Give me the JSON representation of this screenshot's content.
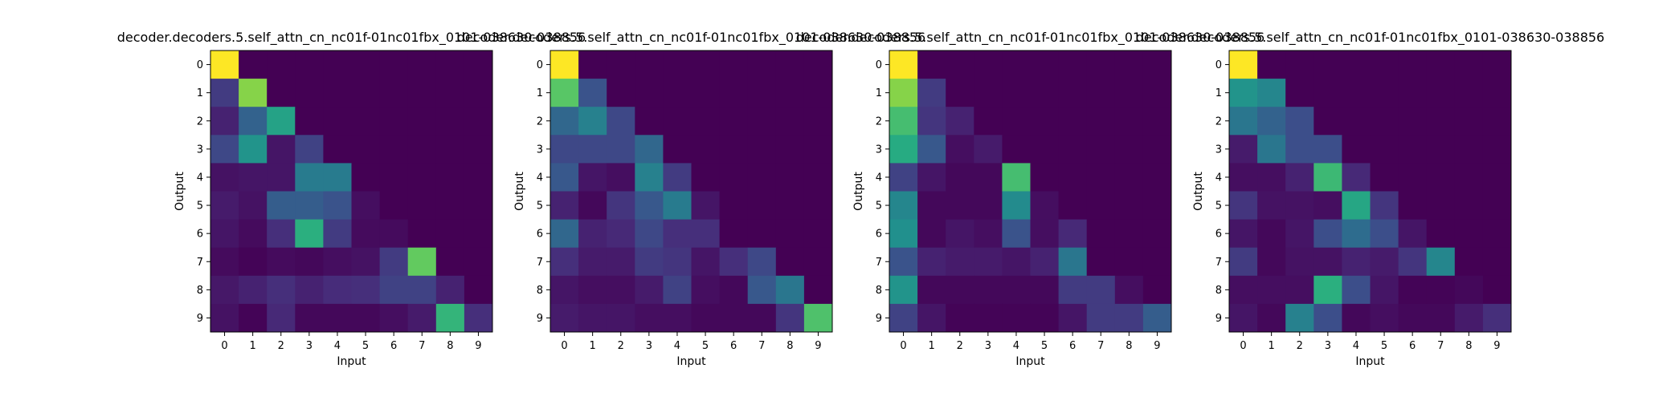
{
  "chart_data": [
    {
      "type": "heatmap",
      "title": "decoder.decoders.5.self_attn_cn_nc01f-01nc01fbx_0101-038630-038856",
      "xlabel": "Input",
      "ylabel": "Output",
      "x_ticks": [
        "0",
        "1",
        "2",
        "3",
        "4",
        "5",
        "6",
        "7",
        "8",
        "9"
      ],
      "y_ticks": [
        "0",
        "1",
        "2",
        "3",
        "4",
        "5",
        "6",
        "7",
        "8",
        "9"
      ],
      "colormap": "viridis",
      "values": [
        [
          1.0,
          0.0,
          0.0,
          0.0,
          0.0,
          0.0,
          0.0,
          0.0,
          0.0,
          0.0
        ],
        [
          0.18,
          0.82,
          0.0,
          0.0,
          0.0,
          0.0,
          0.0,
          0.0,
          0.0,
          0.0
        ],
        [
          0.1,
          0.32,
          0.58,
          0.0,
          0.0,
          0.0,
          0.0,
          0.0,
          0.0,
          0.0
        ],
        [
          0.22,
          0.52,
          0.06,
          0.2,
          0.0,
          0.0,
          0.0,
          0.0,
          0.0,
          0.0
        ],
        [
          0.05,
          0.06,
          0.06,
          0.42,
          0.42,
          0.0,
          0.0,
          0.0,
          0.0,
          0.0
        ],
        [
          0.08,
          0.05,
          0.3,
          0.3,
          0.26,
          0.04,
          0.0,
          0.0,
          0.0,
          0.0
        ],
        [
          0.06,
          0.03,
          0.14,
          0.64,
          0.18,
          0.03,
          0.03,
          0.0,
          0.0,
          0.0
        ],
        [
          0.03,
          0.01,
          0.03,
          0.02,
          0.04,
          0.05,
          0.18,
          0.76,
          0.0,
          0.0
        ],
        [
          0.07,
          0.1,
          0.14,
          0.1,
          0.13,
          0.14,
          0.2,
          0.2,
          0.1,
          0.0
        ],
        [
          0.05,
          0.01,
          0.12,
          0.02,
          0.02,
          0.02,
          0.04,
          0.08,
          0.66,
          0.14
        ]
      ]
    },
    {
      "type": "heatmap",
      "title": "decoder.decoders.5.self_attn_cn_nc01f-01nc01fbx_0101-038630-038856",
      "xlabel": "Input",
      "ylabel": "Output",
      "x_ticks": [
        "0",
        "1",
        "2",
        "3",
        "4",
        "5",
        "6",
        "7",
        "8",
        "9"
      ],
      "y_ticks": [
        "0",
        "1",
        "2",
        "3",
        "4",
        "5",
        "6",
        "7",
        "8",
        "9"
      ],
      "colormap": "viridis",
      "values": [
        [
          1.0,
          0.0,
          0.0,
          0.0,
          0.0,
          0.0,
          0.0,
          0.0,
          0.0,
          0.0
        ],
        [
          0.74,
          0.26,
          0.0,
          0.0,
          0.0,
          0.0,
          0.0,
          0.0,
          0.0,
          0.0
        ],
        [
          0.34,
          0.44,
          0.22,
          0.0,
          0.0,
          0.0,
          0.0,
          0.0,
          0.0,
          0.0
        ],
        [
          0.22,
          0.22,
          0.22,
          0.34,
          0.0,
          0.0,
          0.0,
          0.0,
          0.0,
          0.0
        ],
        [
          0.28,
          0.06,
          0.04,
          0.44,
          0.18,
          0.0,
          0.0,
          0.0,
          0.0,
          0.0
        ],
        [
          0.1,
          0.02,
          0.16,
          0.28,
          0.42,
          0.06,
          0.0,
          0.0,
          0.0,
          0.0
        ],
        [
          0.34,
          0.1,
          0.12,
          0.22,
          0.14,
          0.14,
          0.0,
          0.0,
          0.0,
          0.0
        ],
        [
          0.14,
          0.08,
          0.08,
          0.18,
          0.16,
          0.06,
          0.14,
          0.22,
          0.0,
          0.0
        ],
        [
          0.06,
          0.04,
          0.04,
          0.08,
          0.2,
          0.04,
          0.02,
          0.28,
          0.4,
          0.0
        ],
        [
          0.08,
          0.06,
          0.06,
          0.04,
          0.04,
          0.02,
          0.02,
          0.02,
          0.16,
          0.72
        ]
      ]
    },
    {
      "type": "heatmap",
      "title": "decoder.decoders.5.self_attn_cn_nc01f-01nc01fbx_0101-038630-038856",
      "xlabel": "Input",
      "ylabel": "Output",
      "x_ticks": [
        "0",
        "1",
        "2",
        "3",
        "4",
        "5",
        "6",
        "7",
        "8",
        "9"
      ],
      "y_ticks": [
        "0",
        "1",
        "2",
        "3",
        "4",
        "5",
        "6",
        "7",
        "8",
        "9"
      ],
      "colormap": "viridis",
      "values": [
        [
          1.0,
          0.0,
          0.0,
          0.0,
          0.0,
          0.0,
          0.0,
          0.0,
          0.0,
          0.0
        ],
        [
          0.82,
          0.18,
          0.0,
          0.0,
          0.0,
          0.0,
          0.0,
          0.0,
          0.0,
          0.0
        ],
        [
          0.7,
          0.16,
          0.1,
          0.0,
          0.0,
          0.0,
          0.0,
          0.0,
          0.0,
          0.0
        ],
        [
          0.62,
          0.28,
          0.04,
          0.08,
          0.0,
          0.0,
          0.0,
          0.0,
          0.0,
          0.0
        ],
        [
          0.2,
          0.06,
          0.02,
          0.02,
          0.7,
          0.0,
          0.0,
          0.0,
          0.0,
          0.0
        ],
        [
          0.46,
          0.02,
          0.02,
          0.02,
          0.48,
          0.04,
          0.0,
          0.0,
          0.0,
          0.0
        ],
        [
          0.5,
          0.02,
          0.06,
          0.04,
          0.26,
          0.04,
          0.12,
          0.0,
          0.0,
          0.0
        ],
        [
          0.26,
          0.1,
          0.08,
          0.08,
          0.06,
          0.1,
          0.4,
          0.0,
          0.0,
          0.0
        ],
        [
          0.52,
          0.02,
          0.02,
          0.02,
          0.02,
          0.02,
          0.18,
          0.18,
          0.04,
          0.0
        ],
        [
          0.2,
          0.06,
          0.01,
          0.01,
          0.01,
          0.01,
          0.06,
          0.18,
          0.18,
          0.3
        ]
      ]
    },
    {
      "type": "heatmap",
      "title": "decoder.decoders.5.self_attn_cn_nc01f-01nc01fbx_0101-038630-038856",
      "xlabel": "Input",
      "ylabel": "Output",
      "x_ticks": [
        "0",
        "1",
        "2",
        "3",
        "4",
        "5",
        "6",
        "7",
        "8",
        "9"
      ],
      "y_ticks": [
        "0",
        "1",
        "2",
        "3",
        "4",
        "5",
        "6",
        "7",
        "8",
        "9"
      ],
      "colormap": "viridis",
      "values": [
        [
          1.0,
          0.0,
          0.0,
          0.0,
          0.0,
          0.0,
          0.0,
          0.0,
          0.0,
          0.0
        ],
        [
          0.52,
          0.46,
          0.0,
          0.0,
          0.0,
          0.0,
          0.0,
          0.0,
          0.0,
          0.0
        ],
        [
          0.4,
          0.32,
          0.24,
          0.0,
          0.0,
          0.0,
          0.0,
          0.0,
          0.0,
          0.0
        ],
        [
          0.08,
          0.4,
          0.24,
          0.24,
          0.0,
          0.0,
          0.0,
          0.0,
          0.0,
          0.0
        ],
        [
          0.04,
          0.04,
          0.1,
          0.68,
          0.12,
          0.0,
          0.0,
          0.0,
          0.0,
          0.0
        ],
        [
          0.16,
          0.05,
          0.05,
          0.04,
          0.6,
          0.16,
          0.0,
          0.0,
          0.0,
          0.0
        ],
        [
          0.06,
          0.02,
          0.06,
          0.24,
          0.36,
          0.24,
          0.06,
          0.0,
          0.0,
          0.0
        ],
        [
          0.18,
          0.02,
          0.05,
          0.05,
          0.1,
          0.08,
          0.16,
          0.46,
          0.0,
          0.0
        ],
        [
          0.04,
          0.04,
          0.04,
          0.64,
          0.24,
          0.06,
          0.01,
          0.01,
          0.02,
          0.0
        ],
        [
          0.06,
          0.02,
          0.44,
          0.24,
          0.02,
          0.04,
          0.02,
          0.02,
          0.08,
          0.14
        ]
      ]
    }
  ]
}
